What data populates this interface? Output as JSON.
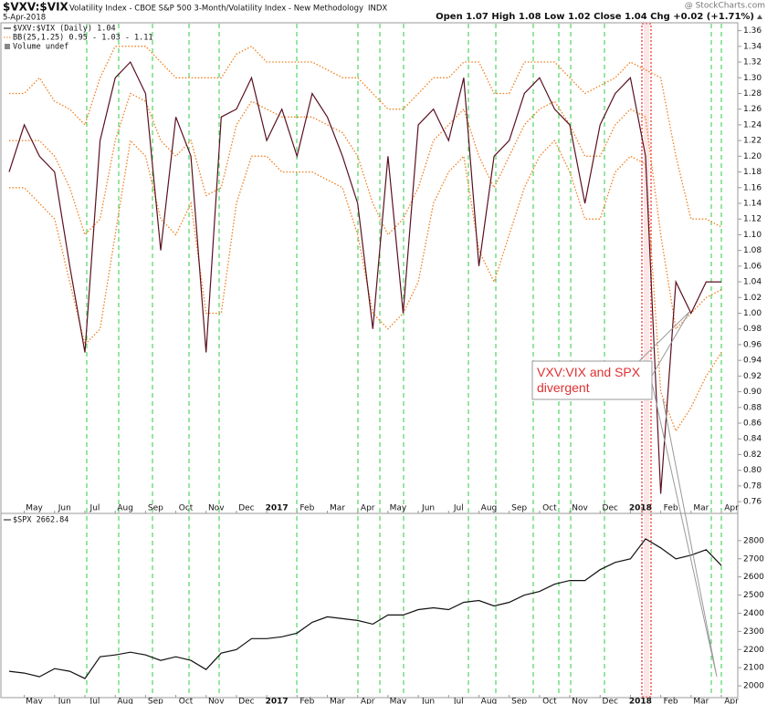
{
  "header": {
    "symbol": "$VXV:$VIX",
    "description": "Volatility Index - CBOE S&P 500 3-Month/Volatility Index - New Methodology",
    "exchange": "INDX",
    "date": "5-Apr-2018",
    "quote": "Open 1.07  High 1.08  Low 1.02  Close 1.04  Chg +0.02 (+1.71%)",
    "watermark": "@ StockCharts.com"
  },
  "chart_data": [
    {
      "type": "line",
      "categories": [
        null,
        "May",
        null,
        "Jun",
        null,
        "Jul",
        null,
        "Aug",
        null,
        "Sep",
        null,
        "Oct",
        null,
        "Nov",
        null,
        "Dec",
        null,
        "2017",
        null,
        "Feb",
        null,
        "Mar",
        null,
        "Apr",
        null,
        "May",
        null,
        "Jun",
        null,
        "Jul",
        null,
        "Aug",
        null,
        "Sep",
        null,
        "Oct",
        null,
        "Nov",
        null,
        "Dec",
        null,
        "2018",
        null,
        "Feb",
        null,
        "Mar",
        null,
        "Apr"
      ],
      "series": [
        {
          "name": "$VXV:$VIX (Daily) 1.04",
          "color": "#5a1020",
          "values": [
            1.18,
            1.24,
            1.2,
            1.18,
            1.06,
            0.95,
            1.22,
            1.3,
            1.32,
            1.28,
            1.08,
            1.25,
            1.2,
            0.95,
            1.25,
            1.26,
            1.3,
            1.22,
            1.26,
            1.2,
            1.28,
            1.25,
            1.2,
            1.14,
            0.98,
            1.2,
            1.0,
            1.24,
            1.26,
            1.22,
            1.3,
            1.06,
            1.2,
            1.22,
            1.28,
            1.3,
            1.26,
            1.24,
            1.14,
            1.24,
            1.28,
            1.3,
            1.2,
            0.77,
            1.04,
            1.0,
            1.04,
            1.04
          ]
        }
      ],
      "bands": {
        "name": "BB(25,1.25) 0.95 - 1.03 - 1.11",
        "color": "#f07f1e",
        "upper": [
          1.28,
          1.28,
          1.3,
          1.27,
          1.26,
          1.24,
          1.3,
          1.34,
          1.34,
          1.34,
          1.32,
          1.3,
          1.3,
          1.3,
          1.3,
          1.33,
          1.34,
          1.32,
          1.32,
          1.32,
          1.32,
          1.31,
          1.3,
          1.3,
          1.28,
          1.26,
          1.26,
          1.28,
          1.3,
          1.3,
          1.32,
          1.32,
          1.28,
          1.28,
          1.32,
          1.32,
          1.32,
          1.3,
          1.28,
          1.29,
          1.3,
          1.32,
          1.31,
          1.3,
          1.2,
          1.12,
          1.12,
          1.11
        ],
        "middle": [
          1.22,
          1.22,
          1.22,
          1.2,
          1.16,
          1.1,
          1.12,
          1.22,
          1.28,
          1.27,
          1.22,
          1.2,
          1.22,
          1.15,
          1.16,
          1.24,
          1.27,
          1.26,
          1.25,
          1.25,
          1.25,
          1.24,
          1.23,
          1.2,
          1.14,
          1.1,
          1.12,
          1.16,
          1.22,
          1.24,
          1.26,
          1.2,
          1.16,
          1.2,
          1.24,
          1.26,
          1.27,
          1.24,
          1.2,
          1.2,
          1.24,
          1.26,
          1.25,
          1.1,
          0.98,
          1.0,
          1.02,
          1.03
        ],
        "lower": [
          1.16,
          1.16,
          1.14,
          1.12,
          1.04,
          0.96,
          0.98,
          1.1,
          1.22,
          1.2,
          1.12,
          1.1,
          1.14,
          1.0,
          1.0,
          1.14,
          1.2,
          1.2,
          1.18,
          1.18,
          1.18,
          1.17,
          1.16,
          1.1,
          1.0,
          0.98,
          1.0,
          1.04,
          1.14,
          1.18,
          1.2,
          1.08,
          1.04,
          1.1,
          1.16,
          1.2,
          1.22,
          1.18,
          1.12,
          1.12,
          1.18,
          1.2,
          1.19,
          0.9,
          0.85,
          0.88,
          0.92,
          0.95
        ]
      },
      "legend_extra": "Volume undef",
      "annotation": "VXV:VIX and SPX divergent",
      "ylim": [
        0.745,
        1.37
      ],
      "yticks": [
        0.76,
        0.78,
        {
          "value": 0.8,
          "label": "0.80"
        },
        0.82,
        0.84,
        0.86,
        0.88,
        {
          "value": 0.9,
          "label": "0.90"
        },
        0.92,
        0.94,
        0.96,
        0.98,
        {
          "value": 1.0,
          "label": "1.00"
        },
        1.02,
        1.04,
        1.06,
        1.08,
        {
          "value": 1.1,
          "label": "1.10"
        },
        1.12,
        1.14,
        1.16,
        1.18,
        {
          "value": 1.2,
          "label": "1.20"
        },
        1.22,
        1.24,
        1.26,
        1.28,
        {
          "value": 1.3,
          "label": "1.30"
        },
        1.32,
        1.34,
        1.36
      ]
    },
    {
      "type": "line",
      "series": [
        {
          "name": "$SPX 2662.84",
          "color": "#111111",
          "values": [
            2080,
            2070,
            2050,
            2095,
            2080,
            2040,
            2160,
            2170,
            2185,
            2170,
            2140,
            2160,
            2140,
            2090,
            2180,
            2200,
            2260,
            2260,
            2270,
            2290,
            2350,
            2380,
            2370,
            2360,
            2340,
            2390,
            2390,
            2420,
            2430,
            2420,
            2460,
            2470,
            2440,
            2460,
            2500,
            2520,
            2560,
            2580,
            2580,
            2640,
            2680,
            2700,
            2810,
            2760,
            2700,
            2720,
            2750,
            2662.84
          ]
        }
      ],
      "ylim": [
        1935,
        2950
      ],
      "yticks": [
        2000,
        2100,
        2200,
        2300,
        2400,
        2500,
        2600,
        2700,
        2800
      ]
    }
  ]
}
